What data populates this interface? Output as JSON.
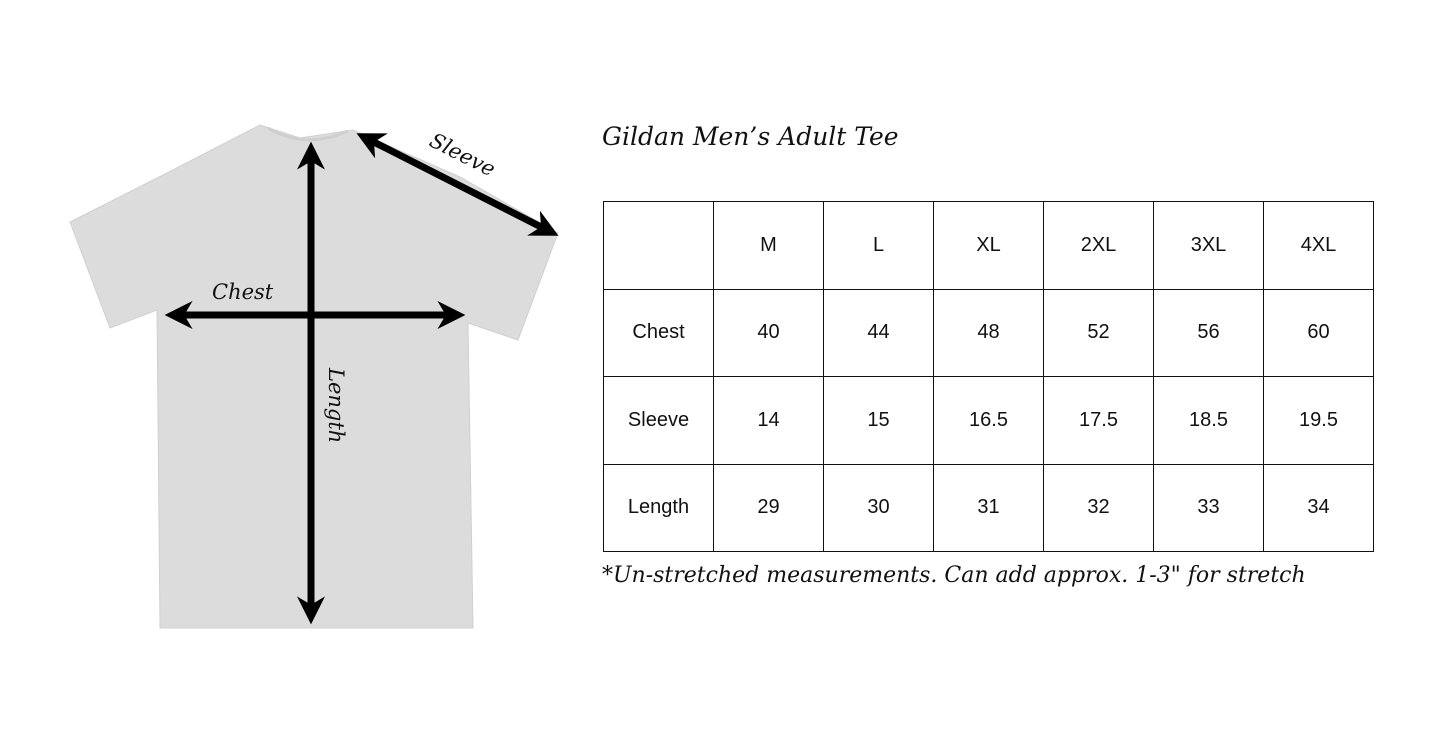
{
  "diagram": {
    "labels": {
      "chest": "Chest",
      "sleeve": "Sleeve",
      "length": "Length"
    },
    "shirt_color": "#dcdcdc",
    "arrow_color": "#000000"
  },
  "title": "Gildan Men’s Adult Tee",
  "table": {
    "header": [
      "",
      "M",
      "L",
      "XL",
      "2XL",
      "3XL",
      "4XL"
    ],
    "rows": [
      [
        "Chest",
        "40",
        "44",
        "48",
        "52",
        "56",
        "60"
      ],
      [
        "Sleeve",
        "14",
        "15",
        "16.5",
        "17.5",
        "18.5",
        "19.5"
      ],
      [
        "Length",
        "29",
        "30",
        "31",
        "32",
        "33",
        "34"
      ]
    ]
  },
  "footnote": "*Un-stretched measurements. Can add approx. 1-3\" for stretch"
}
